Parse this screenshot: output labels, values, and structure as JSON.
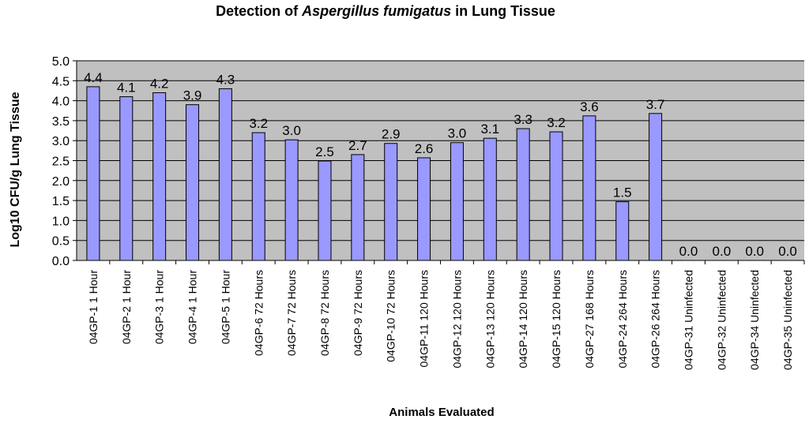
{
  "chart_data": {
    "type": "bar",
    "title_prefix": "Detection of ",
    "title_italic": "Aspergillus fumigatus",
    "title_suffix": "  in Lung Tissue",
    "xlabel": "Animals Evaluated",
    "ylabel": "Log10 CFU/g Lung Tissue",
    "ylim": [
      0,
      5.0
    ],
    "yticks": [
      "0.0",
      "0.5",
      "1.0",
      "1.5",
      "2.0",
      "2.5",
      "3.0",
      "3.5",
      "4.0",
      "4.5",
      "5.0"
    ],
    "grid": true,
    "categories": [
      "04GP-1 1 Hour",
      "04GP-2 1 Hour",
      "04GP-3 1 Hour",
      "04GP-4 1 Hour",
      "04GP-5 1 Hour",
      "04GP-6 72 Hours",
      "04GP-7 72 Hours",
      "04GP-8 72 Hours",
      "04GP-9 72 Hours",
      "04GP-10 72 Hours",
      "04GP-11 120 Hours",
      "04GP-12 120 Hours",
      "04GP-13 120 Hours",
      "04GP-14 120 Hours",
      "04GP-15 120 Hours",
      "04GP-27 168 Hours",
      "04GP-24 264 Hours",
      "04GP-26 264 Hours",
      "04GP-31 Uninfected",
      "04GP-32 Uninfected",
      "04GP-34 Uninfected",
      "04GP-35 Uninfected"
    ],
    "values": [
      4.35,
      4.1,
      4.2,
      3.9,
      4.3,
      3.2,
      3.02,
      2.49,
      2.65,
      2.93,
      2.57,
      2.95,
      3.06,
      3.3,
      3.22,
      3.62,
      1.47,
      3.68,
      0,
      0,
      0,
      0
    ],
    "data_labels": [
      "4.4",
      "4.1",
      "4.2",
      "3.9",
      "4.3",
      "3.2",
      "3.0",
      "2.5",
      "2.7",
      "2.9",
      "2.6",
      "3.0",
      "3.1",
      "3.3",
      "3.2",
      "3.6",
      "1.5",
      "3.7",
      "0.0",
      "0.0",
      "0.0",
      "0.0"
    ],
    "colors": {
      "bar_fill": "#9999ff",
      "bar_stroke": "#000000",
      "plot_background": "#c0c0c0",
      "gridline": "#000000"
    }
  }
}
